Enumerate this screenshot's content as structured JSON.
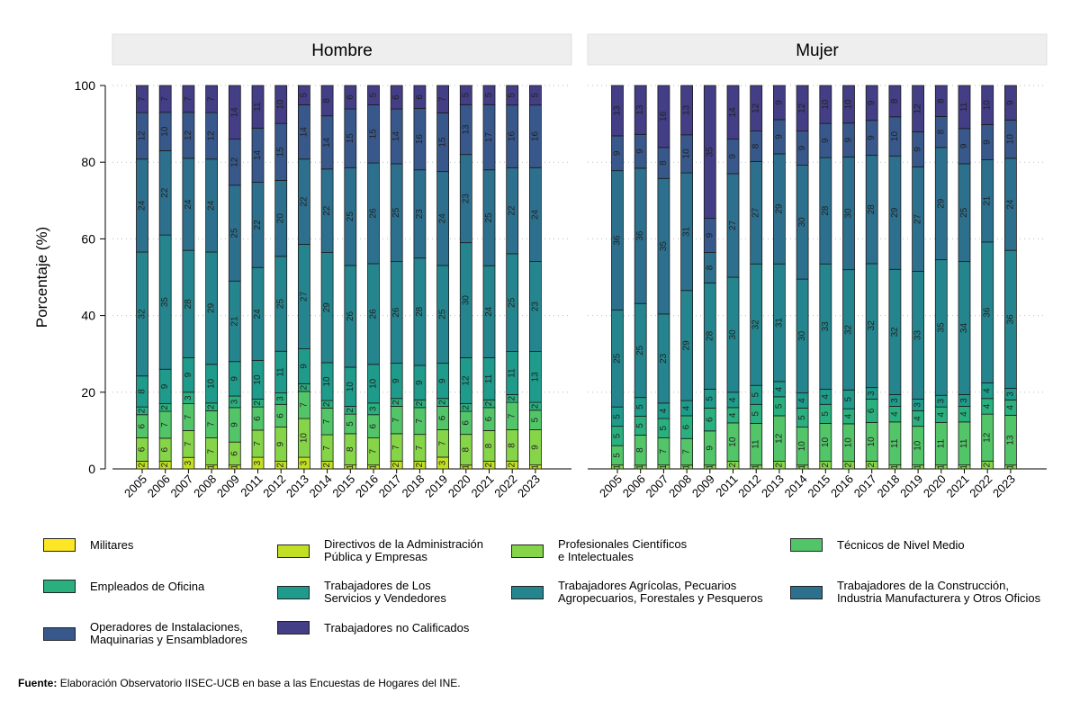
{
  "chart_data": {
    "type": "bar",
    "stacked": true,
    "ylabel": "Porcentaje (%)",
    "ylim": [
      0,
      100
    ],
    "yticks": [
      0,
      20,
      40,
      60,
      80,
      100
    ],
    "legend_position": "bottom",
    "source_label": "Fuente:",
    "source_text": "Elaboración Observatorio IISEC-UCB en base a las Encuestas de Hogares del INE.",
    "categories_legend": [
      {
        "label": "Militares",
        "color": "#fde725"
      },
      {
        "label": "Directivos de la Administración\nPública y Empresas",
        "color": "#c2df23"
      },
      {
        "label": "Profesionales Científicos\ne Intelectuales",
        "color": "#86d549"
      },
      {
        "label": "Técnicos de Nivel Medio",
        "color": "#52c569"
      },
      {
        "label": "Empleados de Oficina",
        "color": "#2ab07f"
      },
      {
        "label": "Trabajadores de Los\nServicios y Vendedores",
        "color": "#1e9b8a"
      },
      {
        "label": "Trabajadores Agrícolas, Pecuarios\nAgropecuarios, Forestales y Pesqueros",
        "color": "#25858e"
      },
      {
        "label": "Trabajadores de la Construcción,\nIndustria Manufacturera y Otros Oficios",
        "color": "#2d708e"
      },
      {
        "label": "Operadores de Instalaciones,\nMaquinarias y Ensambladores",
        "color": "#38588c"
      },
      {
        "label": "Trabajadores no Calificados",
        "color": "#433e85"
      }
    ],
    "panels": [
      {
        "title": "Hombre",
        "years": [
          "2005",
          "2006",
          "2007",
          "2008",
          "2009",
          "2011",
          "2012",
          "2013",
          "2014",
          "2015",
          "2016",
          "2017",
          "2018",
          "2019",
          "2020",
          "2021",
          "2022",
          "2023"
        ],
        "values": [
          [
            2,
            6,
            6,
            2,
            8,
            32,
            24,
            12,
            7
          ],
          [
            2,
            6,
            7,
            2,
            9,
            35,
            22,
            10,
            7
          ],
          [
            3,
            7,
            7,
            3,
            9,
            28,
            24,
            12,
            7
          ],
          [
            1,
            7,
            7,
            2,
            10,
            29,
            24,
            12,
            7
          ],
          [
            1,
            6,
            9,
            3,
            9,
            21,
            25,
            12,
            14
          ],
          [
            3,
            7,
            6,
            2,
            10,
            24,
            22,
            14,
            11
          ],
          [
            2,
            9,
            6,
            3,
            11,
            25,
            20,
            15,
            10
          ],
          [
            3,
            10,
            7,
            2,
            9,
            27,
            22,
            14,
            5
          ],
          [
            2,
            7,
            7,
            2,
            10,
            29,
            22,
            14,
            8
          ],
          [
            1,
            8,
            5,
            2,
            10,
            26,
            25,
            15,
            6
          ],
          [
            1,
            7,
            6,
            3,
            10,
            26,
            26,
            15,
            5
          ],
          [
            2,
            7,
            7,
            2,
            9,
            26,
            25,
            14,
            6
          ],
          [
            2,
            7,
            7,
            2,
            9,
            28,
            23,
            16,
            6
          ],
          [
            3,
            7,
            6,
            2,
            9,
            25,
            24,
            15,
            7
          ],
          [
            1,
            8,
            6,
            2,
            12,
            30,
            23,
            13,
            5
          ],
          [
            2,
            8,
            6,
            2,
            11,
            24,
            25,
            17,
            5
          ],
          [
            2,
            8,
            7,
            2,
            11,
            25,
            22,
            16,
            5
          ],
          [
            1,
            9,
            5,
            2,
            13,
            23,
            24,
            16,
            5
          ]
        ]
      },
      {
        "title": "Mujer",
        "years": [
          "2005",
          "2006",
          "2007",
          "2008",
          "2009",
          "2011",
          "2012",
          "2013",
          "2014",
          "2015",
          "2016",
          "2017",
          "2018",
          "2019",
          "2020",
          "2021",
          "2022",
          "2023"
        ],
        "values": [
          [
            1,
            5,
            5,
            5,
            25,
            36,
            9,
            13
          ],
          [
            1,
            8,
            5,
            5,
            25,
            36,
            9,
            13
          ],
          [
            1,
            7,
            5,
            4,
            23,
            35,
            8,
            16
          ],
          [
            1,
            7,
            6,
            4,
            29,
            31,
            10,
            13
          ],
          [
            1,
            9,
            6,
            5,
            28,
            8,
            9,
            35
          ],
          [
            2,
            10,
            4,
            4,
            30,
            27,
            9,
            14
          ],
          [
            1,
            11,
            5,
            5,
            32,
            27,
            8,
            12
          ],
          [
            2,
            12,
            5,
            4,
            31,
            29,
            9,
            9
          ],
          [
            1,
            10,
            5,
            4,
            30,
            30,
            9,
            12
          ],
          [
            2,
            10,
            5,
            4,
            33,
            28,
            9,
            10
          ],
          [
            2,
            10,
            4,
            5,
            32,
            30,
            9,
            10
          ],
          [
            2,
            10,
            6,
            3,
            32,
            28,
            9,
            9
          ],
          [
            1,
            11,
            4,
            3,
            32,
            29,
            10,
            8
          ],
          [
            1,
            10,
            4,
            3,
            33,
            27,
            9,
            12
          ],
          [
            1,
            11,
            4,
            3,
            35,
            29,
            8,
            8
          ],
          [
            1,
            11,
            4,
            3,
            34,
            25,
            9,
            11
          ],
          [
            2,
            12,
            4,
            4,
            36,
            21,
            9,
            10
          ],
          [
            1,
            13,
            4,
            3,
            36,
            24,
            10,
            9
          ]
        ]
      }
    ]
  }
}
